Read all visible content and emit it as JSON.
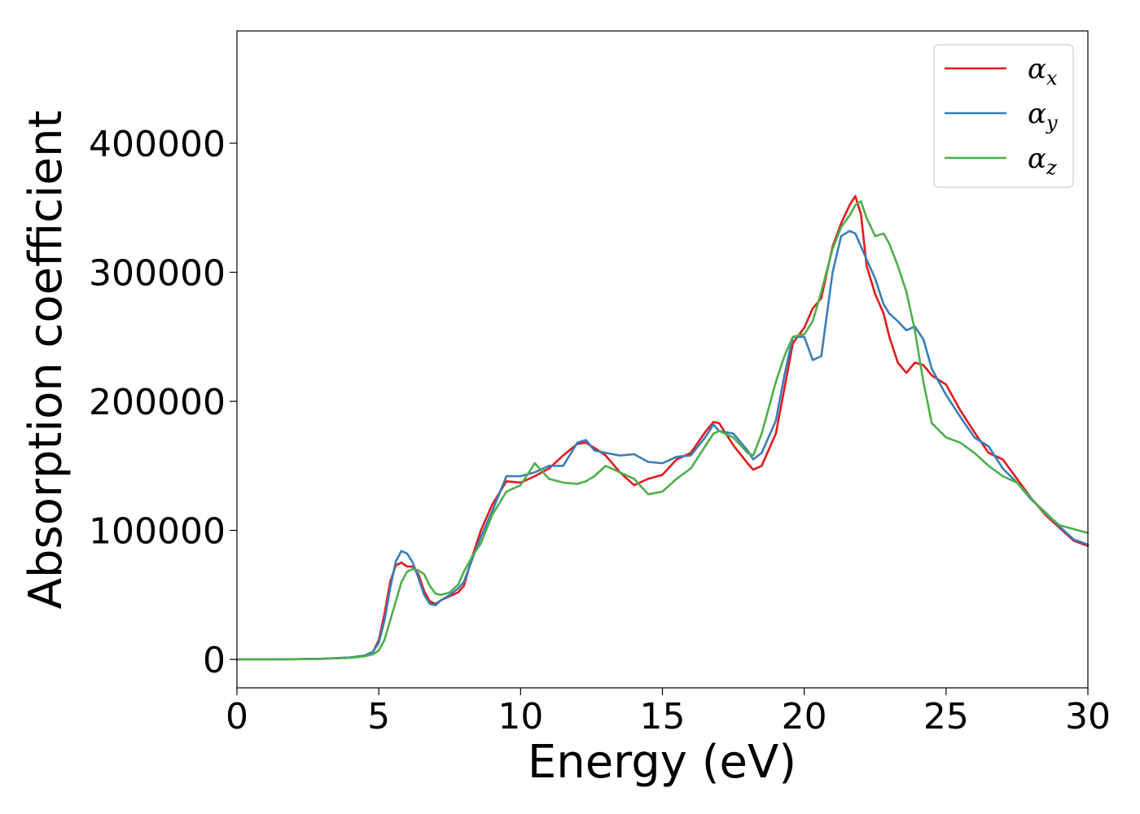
{
  "chart_data": {
    "type": "line",
    "title": "",
    "xlabel": "Energy (eV)",
    "ylabel": "Absorption coefficient",
    "xlim": [
      0,
      30
    ],
    "ylim": [
      -22000,
      487000
    ],
    "xticks": [
      0,
      5,
      10,
      15,
      20,
      25,
      30
    ],
    "yticks": [
      0,
      100000,
      200000,
      300000,
      400000
    ],
    "grid": false,
    "legend_position": "top-right",
    "series": [
      {
        "name": "αx",
        "symbol": "α",
        "subscript": "x",
        "color": "#e41a1c",
        "x": [
          0,
          1,
          2,
          3,
          4,
          4.5,
          4.8,
          5.0,
          5.2,
          5.4,
          5.6,
          5.8,
          6.0,
          6.2,
          6.4,
          6.6,
          6.8,
          7.0,
          7.2,
          7.5,
          7.8,
          8.0,
          8.3,
          8.6,
          9.0,
          9.5,
          10.0,
          10.5,
          11.0,
          11.5,
          12.0,
          12.3,
          12.6,
          13.0,
          13.5,
          14.0,
          14.5,
          15.0,
          15.5,
          16.0,
          16.5,
          16.8,
          17.0,
          17.5,
          18.0,
          18.2,
          18.5,
          19.0,
          19.3,
          19.6,
          20.0,
          20.3,
          20.6,
          21.0,
          21.3,
          21.6,
          21.8,
          22.0,
          22.2,
          22.5,
          22.8,
          23.0,
          23.3,
          23.6,
          23.9,
          24.2,
          24.5,
          25.0,
          25.5,
          26.0,
          26.5,
          27.0,
          27.5,
          28.0,
          28.5,
          29.0,
          29.5,
          30.0
        ],
        "values": [
          0,
          0,
          200,
          500,
          1500,
          3000,
          6000,
          15000,
          35000,
          60000,
          73000,
          75000,
          72000,
          72000,
          66000,
          53000,
          45000,
          43000,
          46000,
          49000,
          52000,
          57000,
          80000,
          100000,
          120000,
          138000,
          137000,
          142000,
          148000,
          158000,
          167000,
          168000,
          164000,
          158000,
          145000,
          135000,
          140000,
          143000,
          155000,
          160000,
          176000,
          184000,
          183000,
          166000,
          152000,
          147000,
          150000,
          175000,
          210000,
          245000,
          257000,
          272000,
          280000,
          320000,
          338000,
          352000,
          359000,
          345000,
          305000,
          283000,
          268000,
          250000,
          230000,
          222000,
          230000,
          228000,
          220000,
          213000,
          193000,
          176000,
          160000,
          155000,
          140000,
          125000,
          112000,
          102000,
          92000,
          88000
        ]
      },
      {
        "name": "αy",
        "symbol": "α",
        "subscript": "y",
        "color": "#377eb8",
        "x": [
          0,
          1,
          2,
          3,
          4,
          4.5,
          4.8,
          5.0,
          5.2,
          5.4,
          5.6,
          5.8,
          6.0,
          6.2,
          6.4,
          6.6,
          6.8,
          7.0,
          7.2,
          7.5,
          7.8,
          8.0,
          8.3,
          8.6,
          9.0,
          9.5,
          10.0,
          10.5,
          11.0,
          11.5,
          12.0,
          12.3,
          12.6,
          13.0,
          13.5,
          14.0,
          14.5,
          15.0,
          15.5,
          16.0,
          16.5,
          16.8,
          17.0,
          17.5,
          18.0,
          18.2,
          18.5,
          19.0,
          19.3,
          19.6,
          20.0,
          20.3,
          20.6,
          21.0,
          21.3,
          21.6,
          21.8,
          22.0,
          22.2,
          22.5,
          22.8,
          23.0,
          23.3,
          23.6,
          23.9,
          24.2,
          24.5,
          25.0,
          25.5,
          26.0,
          26.5,
          27.0,
          27.5,
          28.0,
          28.5,
          29.0,
          29.5,
          30.0
        ],
        "values": [
          0,
          0,
          200,
          500,
          1500,
          3000,
          6000,
          13000,
          30000,
          55000,
          76000,
          84000,
          82000,
          75000,
          63000,
          50000,
          43000,
          42000,
          46000,
          50000,
          55000,
          60000,
          78000,
          95000,
          115000,
          142000,
          142000,
          145000,
          150000,
          150000,
          168000,
          170000,
          162000,
          160000,
          158000,
          159000,
          153000,
          152000,
          157000,
          158000,
          172000,
          182000,
          177000,
          175000,
          162000,
          155000,
          160000,
          185000,
          220000,
          250000,
          250000,
          232000,
          235000,
          300000,
          328000,
          332000,
          330000,
          320000,
          310000,
          295000,
          275000,
          268000,
          262000,
          255000,
          258000,
          248000,
          225000,
          205000,
          188000,
          172000,
          165000,
          148000,
          137000,
          124000,
          114000,
          103000,
          93000,
          89000
        ]
      },
      {
        "name": "αz",
        "symbol": "α",
        "subscript": "z",
        "color": "#4daf4a",
        "x": [
          0,
          1,
          2,
          3,
          4,
          4.5,
          4.8,
          5.0,
          5.2,
          5.4,
          5.6,
          5.8,
          6.0,
          6.2,
          6.4,
          6.6,
          6.8,
          7.0,
          7.2,
          7.5,
          7.8,
          8.0,
          8.3,
          8.6,
          9.0,
          9.5,
          10.0,
          10.5,
          11.0,
          11.5,
          12.0,
          12.3,
          12.6,
          13.0,
          13.5,
          14.0,
          14.5,
          15.0,
          15.5,
          16.0,
          16.5,
          16.8,
          17.0,
          17.5,
          18.0,
          18.2,
          18.5,
          19.0,
          19.3,
          19.6,
          20.0,
          20.3,
          20.6,
          21.0,
          21.3,
          21.6,
          21.8,
          22.0,
          22.2,
          22.5,
          22.8,
          23.0,
          23.3,
          23.6,
          23.9,
          24.2,
          24.5,
          25.0,
          25.5,
          26.0,
          26.5,
          27.0,
          27.5,
          28.0,
          28.5,
          29.0,
          29.5,
          30.0
        ],
        "values": [
          0,
          0,
          200,
          500,
          1200,
          2500,
          4000,
          7000,
          15000,
          30000,
          45000,
          60000,
          68000,
          70000,
          69000,
          66000,
          57000,
          51000,
          50000,
          52000,
          58000,
          68000,
          80000,
          90000,
          112000,
          130000,
          135000,
          152000,
          140000,
          137000,
          136000,
          138000,
          142000,
          150000,
          145000,
          140000,
          128000,
          130000,
          140000,
          148000,
          165000,
          175000,
          177000,
          172000,
          160000,
          158000,
          175000,
          215000,
          235000,
          250000,
          252000,
          262000,
          285000,
          318000,
          335000,
          344000,
          352000,
          355000,
          342000,
          328000,
          330000,
          322000,
          305000,
          285000,
          255000,
          215000,
          183000,
          172000,
          168000,
          160000,
          150000,
          142000,
          137000,
          125000,
          113000,
          104000,
          101000,
          98000
        ]
      }
    ]
  }
}
